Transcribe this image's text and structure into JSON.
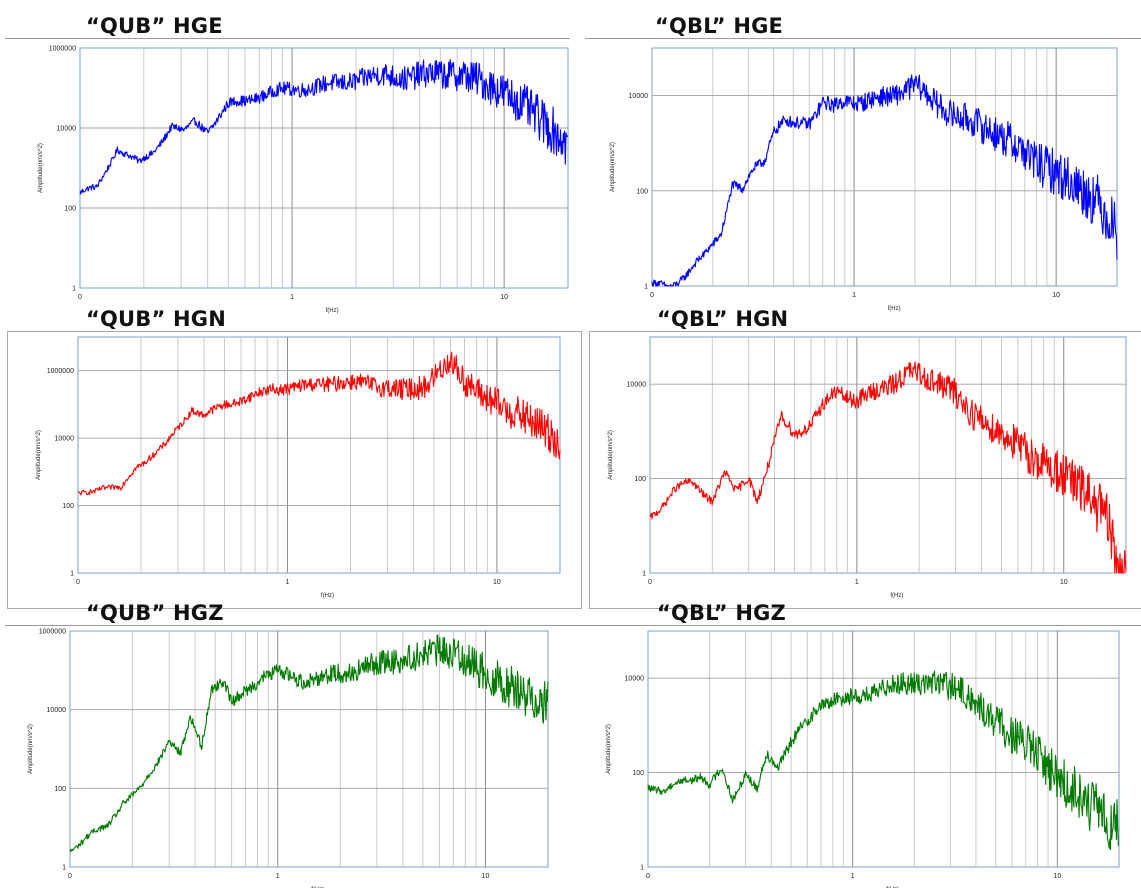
{
  "chart_data": [
    {
      "id": "qub_hge",
      "type": "line",
      "title": "“QUB” HGE",
      "xlabel": "f(Hz)",
      "ylabel": "Amplitude(nm/s^2)",
      "xscale": "log",
      "yscale": "log",
      "xlim": [
        0.1,
        20
      ],
      "ylim": [
        1,
        1000000
      ],
      "xtick_labels": [
        "0",
        "1",
        "10"
      ],
      "ytick_labels": [
        "1",
        "100",
        "10000",
        "1000000"
      ],
      "grid": true,
      "line_color": "#0000ff",
      "series": [
        {
          "x": [
            0.1,
            0.12,
            0.15,
            0.19,
            0.22,
            0.27,
            0.31,
            0.35,
            0.4,
            0.45,
            0.5,
            0.6,
            0.7,
            0.85,
            1.0,
            1.3,
            1.7,
            2.2,
            2.8,
            3.5,
            4.5,
            6,
            7.5,
            9,
            11,
            13,
            15,
            17.5,
            20
          ],
          "y": [
            250,
            300,
            3500,
            1300,
            2500,
            12000,
            8000,
            15000,
            9000,
            20000,
            40000,
            50000,
            70000,
            90000,
            100000,
            120000,
            150000,
            200000,
            250000,
            200000,
            280000,
            260000,
            200000,
            130000,
            70000,
            40000,
            20000,
            10000,
            5000
          ]
        }
      ]
    },
    {
      "id": "qbl_hge",
      "type": "line",
      "title": "“QBL” HGE",
      "xlabel": "f(Hz)",
      "ylabel": "Amplitude(nm/s^2)",
      "xscale": "log",
      "yscale": "log",
      "xlim": [
        0.1,
        20
      ],
      "ylim": [
        1,
        100000
      ],
      "xtick_labels": [
        "0",
        "1",
        "10"
      ],
      "ytick_labels": [
        "1",
        "100",
        "10000"
      ],
      "grid": true,
      "line_color": "#0000ff",
      "series": [
        {
          "x": [
            0.12,
            0.15,
            0.18,
            0.22,
            0.25,
            0.28,
            0.32,
            0.36,
            0.4,
            0.45,
            0.5,
            0.6,
            0.7,
            0.8,
            0.9,
            1.0,
            1.2,
            1.5,
            2.0,
            2.5,
            3.0,
            4.0,
            5.0,
            6.5,
            8,
            10,
            13,
            16,
            20
          ],
          "y": [
            1,
            2,
            4,
            15,
            150,
            100,
            300,
            500,
            2000,
            3000,
            2500,
            3000,
            8000,
            6000,
            8000,
            8000,
            9000,
            10000,
            20000,
            8000,
            5000,
            3000,
            2000,
            1000,
            500,
            300,
            150,
            80,
            20
          ]
        }
      ]
    },
    {
      "id": "qub_hgn",
      "type": "line",
      "title": "“QUB” HGN",
      "xlabel": "f(Hz)",
      "ylabel": "Amplitude(nm/s^2)",
      "xscale": "log",
      "yscale": "log",
      "xlim": [
        0.1,
        20
      ],
      "ylim": [
        1,
        10000000
      ],
      "xtick_labels": [
        "0",
        "1",
        "10"
      ],
      "ytick_labels": [
        "1",
        "100",
        "10000",
        "1000000"
      ],
      "grid": true,
      "line_color": "#ff0000",
      "series": [
        {
          "x": [
            0.1,
            0.13,
            0.16,
            0.19,
            0.22,
            0.26,
            0.3,
            0.35,
            0.4,
            0.45,
            0.5,
            0.6,
            0.7,
            0.85,
            1.0,
            1.3,
            1.7,
            2.2,
            2.8,
            3.5,
            4.5,
            6,
            7,
            8,
            9.5,
            11,
            13,
            16,
            20
          ],
          "y": [
            200,
            400,
            300,
            1500,
            3000,
            6000,
            20000,
            80000,
            50000,
            70000,
            100000,
            150000,
            200000,
            300000,
            350000,
            400000,
            500000,
            500000,
            400000,
            300000,
            400000,
            2500000,
            600000,
            300000,
            150000,
            90000,
            60000,
            30000,
            10000
          ]
        }
      ]
    },
    {
      "id": "qbl_hgn",
      "type": "line",
      "title": "“QBL” HGN",
      "xlabel": "f(Hz)",
      "ylabel": "Amplitude(nm/s^2)",
      "xscale": "log",
      "yscale": "log",
      "xlim": [
        0.1,
        20
      ],
      "ylim": [
        1,
        100000
      ],
      "xtick_labels": [
        "0",
        "1",
        "10"
      ],
      "ytick_labels": [
        "1",
        "100",
        "10000"
      ],
      "grid": true,
      "line_color": "#ff0000",
      "series": [
        {
          "x": [
            0.1,
            0.13,
            0.16,
            0.2,
            0.23,
            0.26,
            0.3,
            0.33,
            0.38,
            0.43,
            0.5,
            0.6,
            0.7,
            0.8,
            0.9,
            1.0,
            1.2,
            1.5,
            1.8,
            2.2,
            2.8,
            3.5,
            4.5,
            6,
            8,
            10,
            13,
            16,
            19
          ],
          "y": [
            15,
            60,
            80,
            40,
            130,
            50,
            120,
            40,
            250,
            2000,
            1000,
            1500,
            4000,
            8000,
            6000,
            5000,
            7000,
            12000,
            20000,
            15000,
            10000,
            3000,
            1500,
            600,
            250,
            150,
            60,
            20,
            1
          ]
        }
      ]
    },
    {
      "id": "qub_hgz",
      "type": "line",
      "title": "“QUB” HGZ",
      "xlabel": "f(Hz)",
      "ylabel": "Amplitude(nm/s^2)",
      "xscale": "log",
      "yscale": "log",
      "xlim": [
        0.1,
        20
      ],
      "ylim": [
        1,
        1000000
      ],
      "xtick_labels": [
        "0",
        "1",
        "10"
      ],
      "ytick_labels": [
        "1",
        "100",
        "10000",
        "1000000"
      ],
      "grid": true,
      "line_color": "#007a00",
      "series": [
        {
          "x": [
            0.1,
            0.12,
            0.15,
            0.18,
            0.22,
            0.26,
            0.3,
            0.34,
            0.38,
            0.43,
            0.48,
            0.55,
            0.6,
            0.7,
            0.85,
            1.0,
            1.3,
            1.7,
            2.2,
            2.8,
            3.5,
            4.5,
            6,
            7.5,
            9,
            11,
            13,
            16,
            20
          ],
          "y": [
            3,
            6,
            10,
            50,
            100,
            400,
            2000,
            800,
            6000,
            1200,
            40000,
            60000,
            15000,
            30000,
            80000,
            100000,
            60000,
            80000,
            100000,
            150000,
            200000,
            250000,
            400000,
            300000,
            150000,
            80000,
            50000,
            30000,
            20000
          ]
        }
      ]
    },
    {
      "id": "qbl_hgz",
      "type": "line",
      "title": "“QBL” HGZ",
      "xlabel": "f(Hz)",
      "ylabel": "Amplitude(nm/s^2)",
      "xscale": "log",
      "yscale": "log",
      "xlim": [
        0.1,
        20
      ],
      "ylim": [
        1,
        100000
      ],
      "xtick_labels": [
        "0",
        "1",
        "10"
      ],
      "ytick_labels": [
        "1",
        "100",
        "10000"
      ],
      "grid": true,
      "line_color": "#007a00",
      "series": [
        {
          "x": [
            0.1,
            0.12,
            0.15,
            0.18,
            0.2,
            0.23,
            0.26,
            0.3,
            0.34,
            0.38,
            0.43,
            0.5,
            0.55,
            0.6,
            0.7,
            0.8,
            1.0,
            1.2,
            1.5,
            1.8,
            2.2,
            2.8,
            3.5,
            4.5,
            6,
            8,
            10,
            13,
            20
          ],
          "y": [
            60,
            35,
            80,
            90,
            50,
            120,
            30,
            110,
            40,
            250,
            150,
            500,
            800,
            1200,
            3000,
            4000,
            4000,
            5000,
            8000,
            8000,
            10000,
            8000,
            6000,
            2000,
            800,
            300,
            100,
            40,
            8
          ]
        }
      ]
    }
  ]
}
